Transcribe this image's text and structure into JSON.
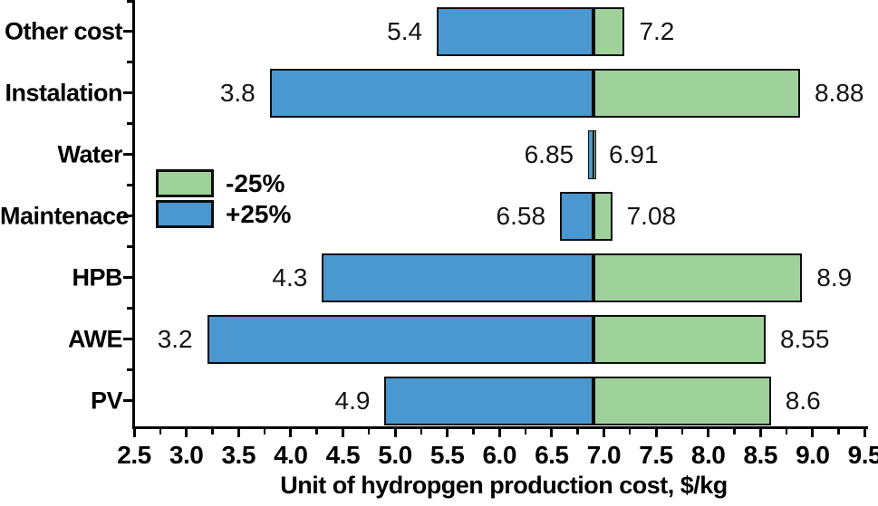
{
  "chart_data": {
    "type": "bar",
    "subtype": "tornado-sensitivity",
    "orientation": "horizontal",
    "title": "",
    "xlabel": "Unit of hydropgen production cost, $/kg",
    "ylabel": "",
    "base_value": 6.9,
    "grid": false,
    "legend_position": "middle-left",
    "x_axis": {
      "min": 2.5,
      "max": 9.5,
      "major_step": 0.5,
      "minor_step": 0.25,
      "tick_labels": [
        "2.5",
        "3.0",
        "3.5",
        "4.0",
        "4.5",
        "5.0",
        "5.5",
        "6.0",
        "6.5",
        "7.0",
        "7.5",
        "8.0",
        "8.5",
        "9.0",
        "9.5"
      ]
    },
    "categories": [
      "Other cost",
      "Instalation",
      "Water",
      "Maintenace",
      "HPB",
      "AWE",
      "PV"
    ],
    "series": [
      {
        "name": "+25%",
        "role": "low-end",
        "values": [
          5.4,
          3.8,
          6.85,
          6.58,
          4.3,
          3.2,
          4.9
        ]
      },
      {
        "name": "-25%",
        "role": "high-end",
        "values": [
          7.2,
          8.88,
          6.91,
          7.08,
          8.9,
          8.55,
          8.6
        ]
      }
    ],
    "rows": [
      {
        "label": "Other cost",
        "low": 5.4,
        "high": 7.2,
        "low_label": "5.4",
        "high_label": "7.2"
      },
      {
        "label": "Instalation",
        "low": 3.8,
        "high": 8.88,
        "low_label": "3.8",
        "high_label": "8.88"
      },
      {
        "label": "Water",
        "low": 6.85,
        "high": 6.91,
        "low_label": "6.85",
        "high_label": "6.91"
      },
      {
        "label": "Maintenace",
        "low": 6.58,
        "high": 7.08,
        "low_label": "6.58",
        "high_label": "7.08"
      },
      {
        "label": "HPB",
        "low": 4.3,
        "high": 8.9,
        "low_label": "4.3",
        "high_label": "8.9"
      },
      {
        "label": "AWE",
        "low": 3.2,
        "high": 8.55,
        "low_label": "3.2",
        "high_label": "8.55"
      },
      {
        "label": "PV",
        "low": 4.9,
        "high": 8.6,
        "low_label": "4.9",
        "high_label": "8.6"
      }
    ],
    "legend": [
      {
        "label": "-25%",
        "color_key": "green"
      },
      {
        "label": "+25%",
        "color_key": "blue"
      }
    ],
    "colors": {
      "blue": "#4B97D0",
      "green": "#9ED29A",
      "border": "#0D0D0D",
      "axis": "#000000"
    }
  }
}
